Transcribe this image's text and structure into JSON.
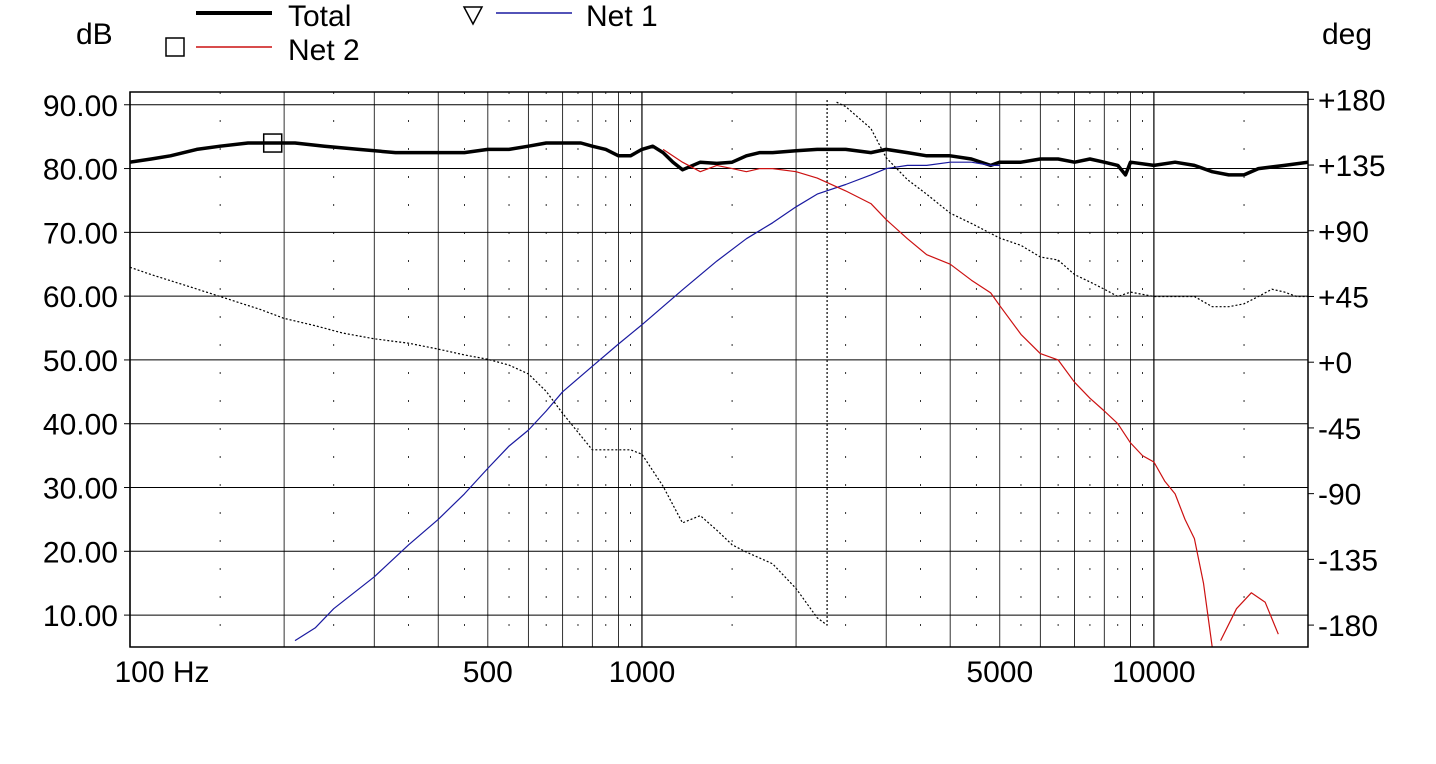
{
  "chart_data": {
    "type": "line",
    "x_scale": "log",
    "x_unit_label": "100 Hz",
    "x_ticks": [
      100,
      500,
      1000,
      5000,
      10000
    ],
    "x_tick_labels": [
      "100 Hz",
      "500",
      "1000",
      "5000",
      "10000"
    ],
    "xlim": [
      100,
      20000
    ],
    "ylabel_left": "dB",
    "ylabel_right": "deg",
    "ylim_left": [
      5,
      92
    ],
    "ylim_right": [
      -195,
      185
    ],
    "left_ticks": [
      10,
      20,
      30,
      40,
      50,
      60,
      70,
      80,
      90
    ],
    "left_tick_labels": [
      "10.00",
      "20.00",
      "30.00",
      "40.00",
      "50.00",
      "60.00",
      "70.00",
      "80.00",
      "90.00"
    ],
    "right_ticks": [
      180,
      135,
      90,
      45,
      0,
      -45,
      -90,
      -135,
      -180
    ],
    "right_tick_labels": [
      "+180",
      "+135",
      "+90",
      "+45",
      "+0",
      "-45",
      "-90",
      "-135",
      "-180"
    ],
    "grid": true,
    "legend": {
      "placement": "top",
      "entries": [
        {
          "label": "Total",
          "marker": "none",
          "color": "#000000"
        },
        {
          "label": "Net 1",
          "marker": "triangle-down",
          "color": "#1a1aa0"
        },
        {
          "label": "Net 2",
          "marker": "square",
          "color": "#cc1111"
        }
      ]
    },
    "series": [
      {
        "name": "Total",
        "axis": "left",
        "color": "#000000",
        "style": "solid-thick",
        "x": [
          100,
          110,
          120,
          135,
          150,
          170,
          190,
          210,
          240,
          280,
          330,
          400,
          450,
          500,
          550,
          600,
          650,
          700,
          760,
          800,
          850,
          900,
          950,
          1000,
          1050,
          1100,
          1150,
          1200,
          1300,
          1400,
          1500,
          1600,
          1700,
          1800,
          2000,
          2200,
          2500,
          2800,
          3000,
          3300,
          3600,
          4000,
          4400,
          4800,
          5000,
          5500,
          6000,
          6500,
          7000,
          7500,
          8000,
          8500,
          8800,
          9000,
          10000,
          11000,
          12000,
          13000,
          14000,
          15000,
          16000,
          18000,
          20000
        ],
        "y": [
          81,
          81.5,
          82,
          83,
          83.5,
          84,
          84,
          84,
          83.5,
          83,
          82.5,
          82.5,
          82.5,
          83,
          83,
          83.5,
          84,
          84,
          84,
          83.5,
          83,
          82,
          82,
          83,
          83.5,
          82.5,
          81,
          79.8,
          81,
          80.8,
          81,
          82,
          82.5,
          82.5,
          82.8,
          83,
          83,
          82.5,
          83,
          82.5,
          82,
          82,
          81.5,
          80.5,
          81,
          81,
          81.5,
          81.5,
          81,
          81.5,
          81,
          80.5,
          79,
          81,
          80.5,
          81,
          80.5,
          79.5,
          79,
          79,
          80,
          80.5,
          81
        ]
      },
      {
        "name": "Net 1",
        "axis": "left",
        "color": "#1a1aa0",
        "style": "solid-thin",
        "x": [
          210,
          230,
          250,
          300,
          350,
          400,
          450,
          500,
          550,
          600,
          650,
          700,
          800,
          900,
          1000,
          1200,
          1400,
          1600,
          1800,
          2000,
          2200,
          2500,
          2800,
          3000,
          3300,
          3600,
          4000,
          4400,
          4800,
          5000
        ],
        "y": [
          6,
          8,
          11,
          16,
          21,
          25,
          29,
          33,
          36.5,
          39,
          42,
          45,
          49,
          52.5,
          55.5,
          61,
          65.5,
          69,
          71.5,
          74,
          76,
          77.5,
          79,
          80,
          80.5,
          80.5,
          81,
          81,
          80.5,
          80.5
        ]
      },
      {
        "name": "Net 2",
        "axis": "left",
        "color": "#cc1111",
        "style": "solid-thin",
        "x": [
          1100,
          1200,
          1300,
          1400,
          1500,
          1600,
          1700,
          1800,
          2000,
          2200,
          2500,
          2800,
          3000,
          3300,
          3600,
          4000,
          4400,
          4800,
          5000,
          5500,
          6000,
          6500,
          7000,
          7500,
          8000,
          8500,
          9000,
          9500,
          10000,
          10500,
          11000,
          11500,
          12000,
          12500,
          13000
        ],
        "y": [
          83,
          81,
          79.5,
          80.5,
          80,
          79.5,
          80,
          80,
          79.5,
          78.5,
          76.5,
          74.5,
          72,
          69,
          66.5,
          65,
          62.5,
          60.5,
          58.5,
          54,
          51,
          50,
          46.5,
          44,
          42,
          40,
          37,
          35,
          34,
          31,
          29,
          25,
          22,
          15,
          5
        ]
      },
      {
        "name": "Net 2 (stopband)",
        "axis": "left",
        "color": "#cc1111",
        "style": "solid-thin",
        "x": [
          13500,
          14500,
          15500,
          16500,
          17500
        ],
        "y": [
          6,
          11,
          13.5,
          12,
          7
        ]
      },
      {
        "name": "Phase",
        "axis": "right",
        "color": "#000000",
        "style": "dotted",
        "x": [
          100,
          110,
          130,
          150,
          180,
          200,
          230,
          260,
          300,
          350,
          400,
          450,
          500,
          550,
          600,
          650,
          700,
          750,
          800,
          850,
          900,
          950,
          1000,
          1100,
          1200,
          1300,
          1400,
          1500,
          1600,
          1800,
          2000,
          2200,
          2300,
          2400,
          2500,
          2800,
          3000,
          3300,
          3600,
          4000,
          4400,
          5000,
          5500,
          6000,
          6500,
          7000,
          7500,
          8000,
          8500,
          9000,
          10000,
          11000,
          12000,
          13000,
          14000,
          15000,
          16000,
          17000,
          18000,
          19000,
          20000
        ],
        "y": [
          65,
          60,
          52,
          45,
          36,
          30,
          25,
          20,
          16,
          13,
          9,
          5,
          2,
          -2,
          -8,
          -20,
          -35,
          -48,
          -60,
          -60,
          -60,
          -60,
          -63,
          -85,
          -110,
          -105,
          -115,
          -125,
          -130,
          -138,
          -155,
          -175,
          -180,
          178,
          175,
          160,
          140,
          125,
          115,
          102,
          95,
          85,
          80,
          72,
          70,
          60,
          55,
          50,
          45,
          48,
          45,
          45,
          45,
          38,
          38,
          40,
          45,
          50,
          48,
          45,
          45
        ]
      }
    ]
  }
}
